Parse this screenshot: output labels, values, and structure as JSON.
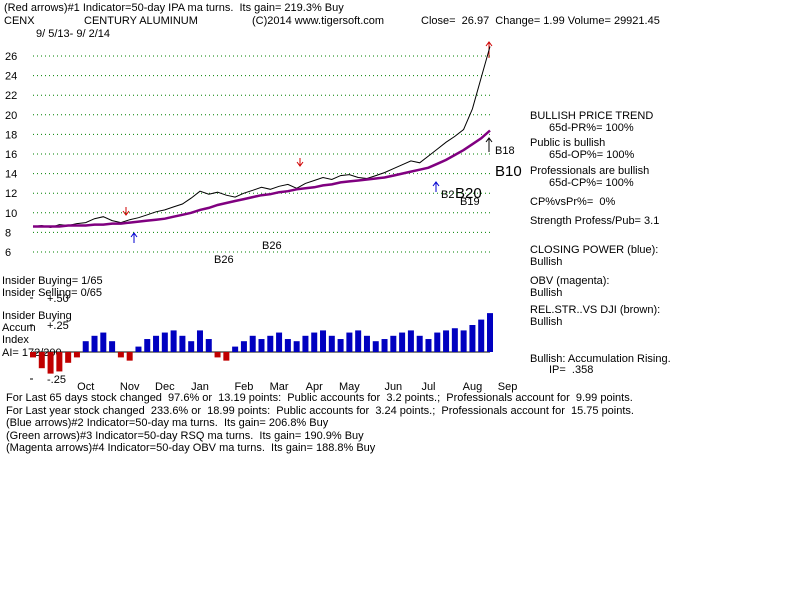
{
  "header": {
    "line1": "(Red arrows)#1 Indicator=50-day IPA ma turns.  Its gain= 219.3% Buy",
    "symbol": "CENX",
    "company": "CENTURY ALUMINUM",
    "copyright": "(C)2014 www.tigersoft.com",
    "quote": "Close=  26.97  Change= 1.99 Volume= 29921.45",
    "dates": "9/ 5/13- 9/ 2/14"
  },
  "panel": {
    "trend": "BULLISH PRICE TREND",
    "pr": "65d-PR%= 100%",
    "public": "Public is bullish",
    "op": "65d-OP%= 100%",
    "professionals": "Professionals are bullish",
    "cp": "65d-CP%= 100%",
    "cpvspr": "CP%vsPr%=  0%",
    "strength": "Strength Profess/Pub= 3.1",
    "closing_power": "CLOSING POWER (blue):",
    "closing_power_status": "Bullish",
    "obv": "OBV (magenta):",
    "obv_status": "Bullish",
    "relstr": "REL.STR..VS DJI (brown):",
    "relstr_status": "Bullish",
    "accum_status": "Bullish: Accumulation Rising.",
    "ip": "IP=  .358"
  },
  "left": {
    "insider_buying": "Insider Buying= 1/65",
    "insider_selling": "Insider Selling= 0/65",
    "insider_label": "Insider Buying",
    "accum": "Accum",
    "index": "Index",
    "ai": "AI= 172/200"
  },
  "annotations": [
    "B18",
    "B10",
    "B20",
    "B19",
    "B2",
    "B26",
    "B26"
  ],
  "footer": [
    "For Last 65 days stock changed  97.6% or  13.19 points:  Public accounts for  3.2 points.;  Professionals account for  9.99 points.",
    "For Last year stock changed  233.6% or  18.99 points:  Public accounts for  3.24 points.;  Professionals account for  15.75 points.",
    "(Blue arrows)#2 Indicator=50-day ma turns.  Its gain= 206.8% Buy",
    "(Green arrows)#3 Indicator=50-day RSQ ma turns.  Its gain= 190.9% Buy",
    "(Magenta arrows)#4 Indicator=50-day OBV ma turns.  Its gain= 188.8% Buy"
  ],
  "chart_data": [
    {
      "type": "line",
      "categories": [
        null,
        null,
        null,
        null,
        null,
        null,
        "Oct",
        null,
        null,
        null,
        null,
        "Nov",
        null,
        null,
        null,
        "Dec",
        null,
        null,
        null,
        "Jan",
        null,
        null,
        null,
        null,
        "Feb",
        null,
        null,
        null,
        "Mar",
        null,
        null,
        null,
        "Apr",
        null,
        null,
        null,
        "May",
        null,
        null,
        null,
        null,
        "Jun",
        null,
        null,
        null,
        "Jul",
        null,
        null,
        null,
        null,
        "Aug",
        null,
        null,
        null,
        "Sep"
      ],
      "series": [
        {
          "color": "#000000",
          "values": [
            8.6,
            8.7,
            8.5,
            8.8,
            8.7,
            8.9,
            9.0,
            9.4,
            9.6,
            9.2,
            9.0,
            9.3,
            9.5,
            9.8,
            10.1,
            10.3,
            10.6,
            10.9,
            11.5,
            12.2,
            11.9,
            12.1,
            11.8,
            11.6,
            12.0,
            12.3,
            12.6,
            12.4,
            12.7,
            12.9,
            12.5,
            13.0,
            13.3,
            13.6,
            13.4,
            13.8,
            13.9,
            13.6,
            13.5,
            13.8,
            14.1,
            14.5,
            14.9,
            15.3,
            15.1,
            15.8,
            16.5,
            17.2,
            17.8,
            18.5,
            20.6,
            23.8,
            26.97,
            null,
            null
          ]
        },
        {
          "color": "#800080",
          "values": [
            8.6,
            8.6,
            8.6,
            8.6,
            8.7,
            8.7,
            8.7,
            8.8,
            8.8,
            8.9,
            8.9,
            9.0,
            9.1,
            9.2,
            9.3,
            9.4,
            9.6,
            9.8,
            10.0,
            10.3,
            10.5,
            10.8,
            11.0,
            11.2,
            11.4,
            11.6,
            11.8,
            11.9,
            12.1,
            12.2,
            12.4,
            12.5,
            12.6,
            12.8,
            12.9,
            13.1,
            13.2,
            13.3,
            13.4,
            13.5,
            13.6,
            13.8,
            14.0,
            14.2,
            14.4,
            14.6,
            15.0,
            15.4,
            15.9,
            16.4,
            17.0,
            17.6,
            18.4,
            null,
            null
          ]
        }
      ],
      "ylim": [
        6,
        28
      ],
      "yticks": [
        6,
        8,
        10,
        12,
        14,
        16,
        18,
        20,
        22,
        24,
        26
      ],
      "grid": true,
      "grid_color": "#008000"
    },
    {
      "type": "bar",
      "color": "#0000c0",
      "negative_color": "#c00000",
      "values": [
        -0.05,
        -0.15,
        -0.2,
        -0.18,
        -0.1,
        -0.05,
        0.1,
        0.15,
        0.18,
        0.1,
        -0.05,
        -0.08,
        0.05,
        0.12,
        0.15,
        0.18,
        0.2,
        0.15,
        0.1,
        0.2,
        0.12,
        -0.05,
        -0.08,
        0.05,
        0.1,
        0.15,
        0.12,
        0.15,
        0.18,
        0.12,
        0.1,
        0.15,
        0.18,
        0.2,
        0.15,
        0.12,
        0.18,
        0.2,
        0.15,
        0.1,
        0.12,
        0.15,
        0.18,
        0.2,
        0.15,
        0.12,
        0.18,
        0.2,
        0.22,
        0.2,
        0.25,
        0.3,
        0.36,
        null,
        null
      ],
      "ylim": [
        -0.35,
        0.55
      ],
      "yticks": [
        {
          "value": 0.5,
          "label": "+.50"
        },
        {
          "value": 0.25,
          "label": "+.25"
        },
        {
          "value": -0.25,
          "label": "-.25"
        }
      ]
    }
  ]
}
